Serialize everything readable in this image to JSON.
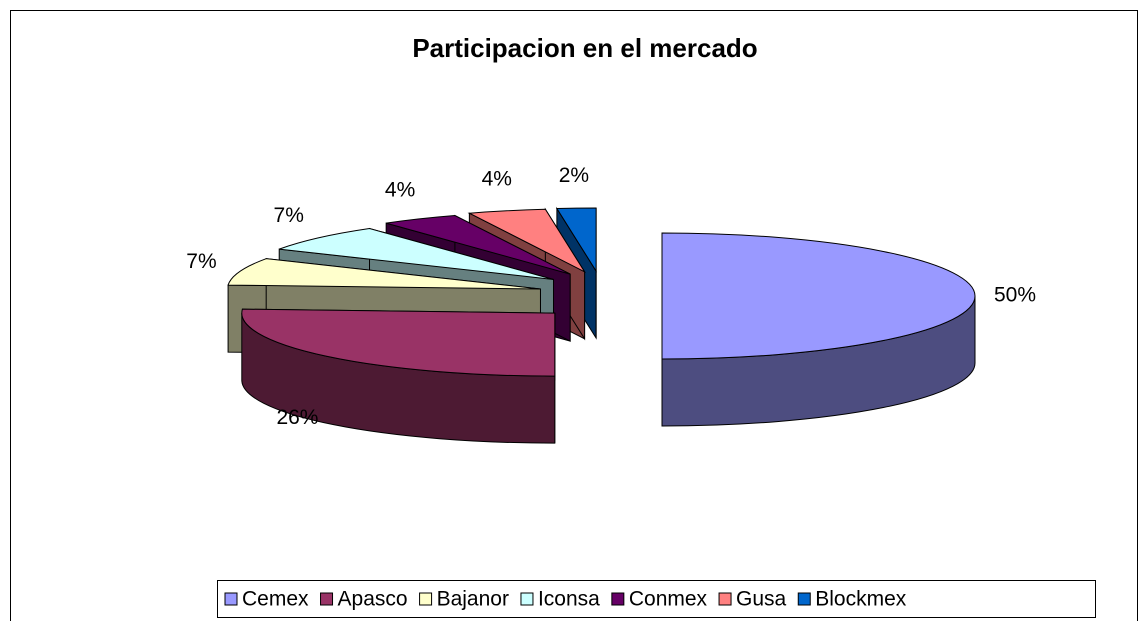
{
  "chart_data": {
    "type": "pie3d",
    "title": "Participacion en el mercado",
    "categories": [
      "Cemex",
      "Apasco",
      "Bajanor",
      "Iconsa",
      "Conmex",
      "Gusa",
      "Blockmex"
    ],
    "values": [
      50,
      26,
      7,
      7,
      4,
      4,
      2
    ],
    "value_labels": [
      "50%",
      "26%",
      "7%",
      "7%",
      "4%",
      "4%",
      "2%"
    ],
    "colors": [
      "#9999ff",
      "#993366",
      "#ffffcc",
      "#ccffff",
      "#660066",
      "#ff8080",
      "#0066cc"
    ],
    "legend": "bottom"
  }
}
